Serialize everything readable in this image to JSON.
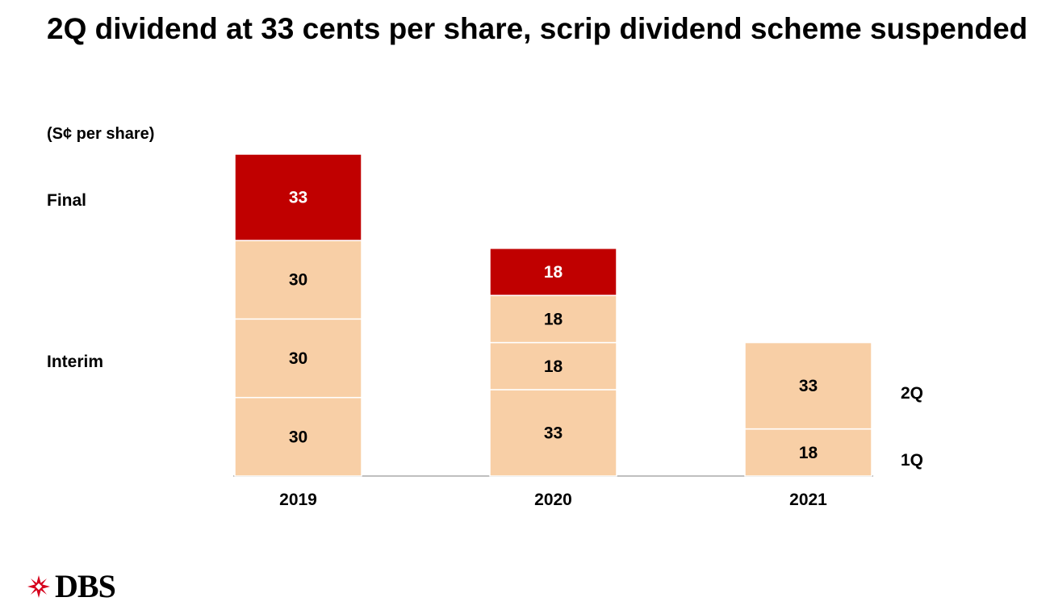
{
  "slide": {
    "title": "2Q dividend at 33 cents per share, scrip dividend scheme suspended"
  },
  "logo": {
    "text": "DBS",
    "icon": "dbs-star-icon"
  },
  "colors": {
    "final": "#c00000",
    "interim": "#f8cfa6",
    "bar_label_final": "#ffffff",
    "bar_label_interim": "#000000",
    "axis": "#bfbfbf"
  },
  "chart_data": {
    "type": "bar",
    "stacked": true,
    "unit_label": "(S¢ per share)",
    "categories": [
      "2019",
      "2020",
      "2021"
    ],
    "series": [
      {
        "role": "interim",
        "values": [
          30,
          33,
          18
        ]
      },
      {
        "role": "interim",
        "values": [
          30,
          18,
          33
        ]
      },
      {
        "role": "interim",
        "values": [
          30,
          18,
          null
        ]
      },
      {
        "role": "final",
        "values": [
          33,
          18,
          null
        ]
      }
    ],
    "row_labels": {
      "final": "Final",
      "interim": "Interim"
    },
    "side_labels": [
      "2Q",
      "1Q"
    ],
    "ylim": [
      0,
      123
    ],
    "grid": false,
    "legend": "none"
  }
}
